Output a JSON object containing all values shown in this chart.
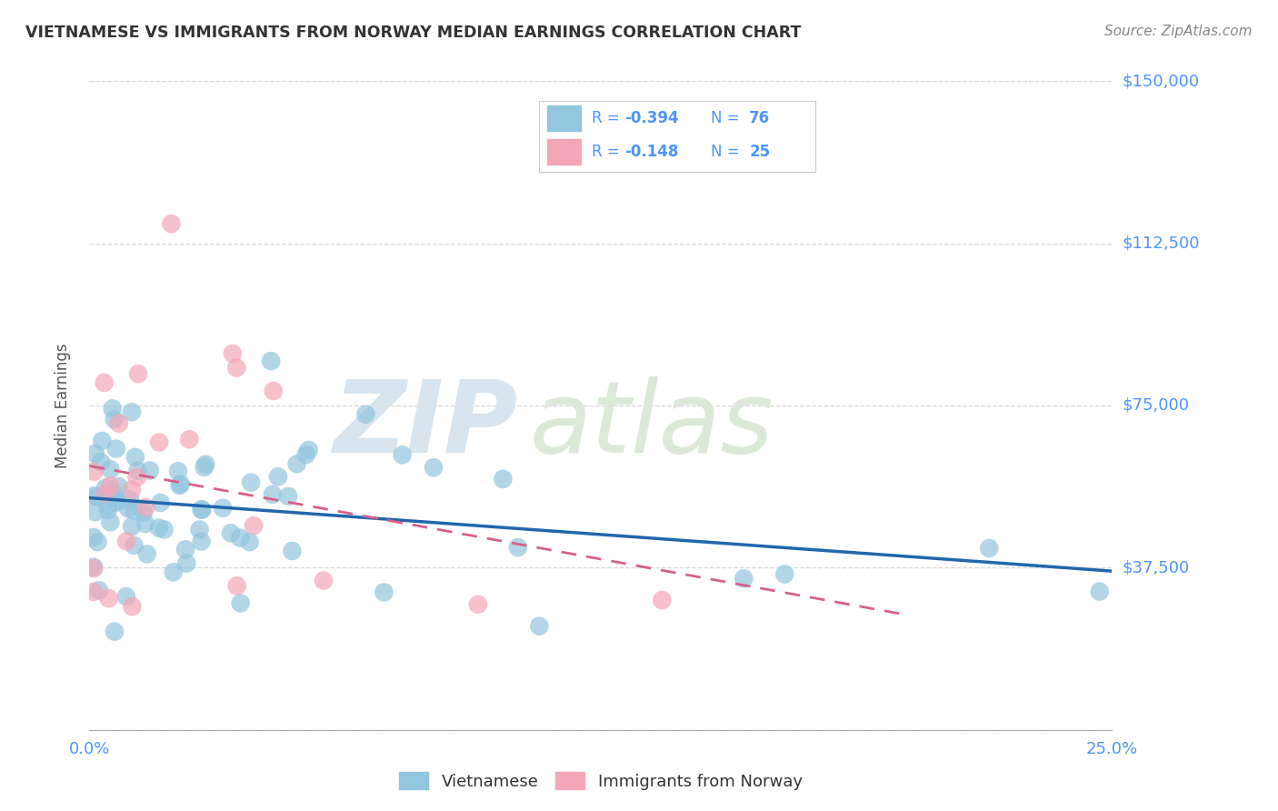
{
  "title": "VIETNAMESE VS IMMIGRANTS FROM NORWAY MEDIAN EARNINGS CORRELATION CHART",
  "source": "Source: ZipAtlas.com",
  "ylabel": "Median Earnings",
  "xlim": [
    0.0,
    0.25
  ],
  "ylim": [
    0,
    150000
  ],
  "yticks": [
    0,
    37500,
    75000,
    112500,
    150000
  ],
  "ytick_labels": [
    "",
    "$37,500",
    "$75,000",
    "$112,500",
    "$150,000"
  ],
  "watermark_zip": "ZIP",
  "watermark_atlas": "atlas",
  "legend_blue_r": "-0.394",
  "legend_blue_n": "76",
  "legend_pink_r": "-0.148",
  "legend_pink_n": "25",
  "legend_label_blue": "Vietnamese",
  "legend_label_pink": "Immigrants from Norway",
  "blue_color": "#92c5de",
  "pink_color": "#f4a6b8",
  "blue_line_color": "#2166ac",
  "pink_line_color": "#d6608a",
  "text_blue": "#4d94ff",
  "background_color": "#ffffff",
  "grid_color": "#cccccc",
  "title_color": "#333333",
  "source_color": "#888888"
}
